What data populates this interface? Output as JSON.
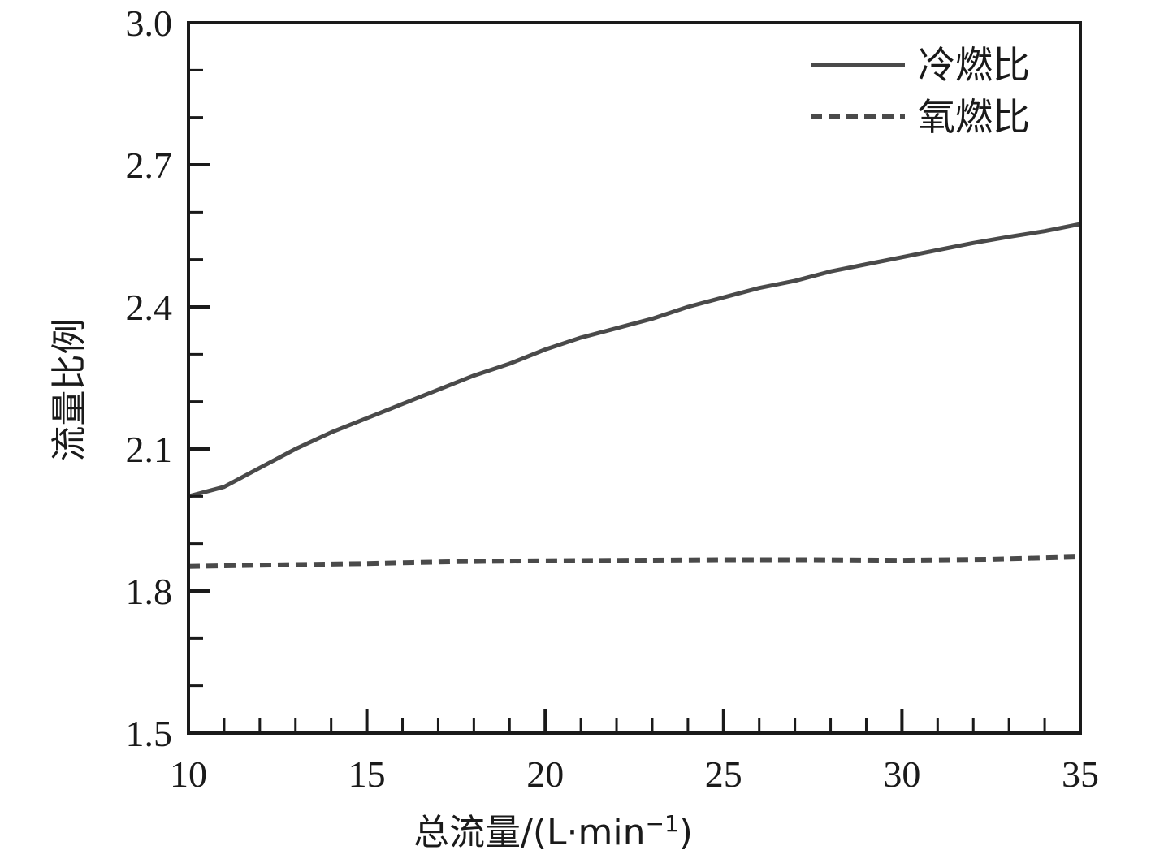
{
  "chart_data": {
    "type": "line",
    "title": "",
    "xlabel": "总流量/(L·min",
    "xlabel_sup": "−1",
    "xlabel_close": ")",
    "ylabel": "流量比例",
    "xlim": [
      10,
      35
    ],
    "ylim": [
      1.5,
      3.0
    ],
    "x_ticks": [
      10,
      15,
      20,
      25,
      30,
      35
    ],
    "x_tick_labels": [
      "10",
      "15",
      "20",
      "25",
      "30",
      "35"
    ],
    "y_ticks": [
      1.5,
      1.8,
      2.1,
      2.4,
      2.7,
      3.0
    ],
    "y_tick_labels": [
      "1.5",
      "1.8",
      "2.1",
      "2.4",
      "2.7",
      "3.0"
    ],
    "grid": false,
    "legend_position": "top-right",
    "series": [
      {
        "name": "冷燃比",
        "style": "solid",
        "color": "#4a4a4a",
        "x": [
          10,
          11,
          12,
          13,
          14,
          15,
          16,
          17,
          18,
          19,
          20,
          21,
          22,
          23,
          24,
          25,
          26,
          27,
          28,
          29,
          30,
          31,
          32,
          33,
          34,
          35
        ],
        "y": [
          2.0,
          2.02,
          2.06,
          2.1,
          2.135,
          2.165,
          2.195,
          2.225,
          2.255,
          2.28,
          2.31,
          2.335,
          2.355,
          2.375,
          2.4,
          2.42,
          2.44,
          2.455,
          2.475,
          2.49,
          2.505,
          2.52,
          2.535,
          2.548,
          2.56,
          2.575
        ]
      },
      {
        "name": "氧燃比",
        "style": "dashed",
        "color": "#4a4a4a",
        "x": [
          10,
          12.5,
          15,
          17.5,
          20,
          22.5,
          25,
          27.5,
          30,
          32.5,
          35
        ],
        "y": [
          1.852,
          1.855,
          1.858,
          1.862,
          1.864,
          1.865,
          1.866,
          1.866,
          1.865,
          1.867,
          1.872
        ]
      }
    ]
  }
}
